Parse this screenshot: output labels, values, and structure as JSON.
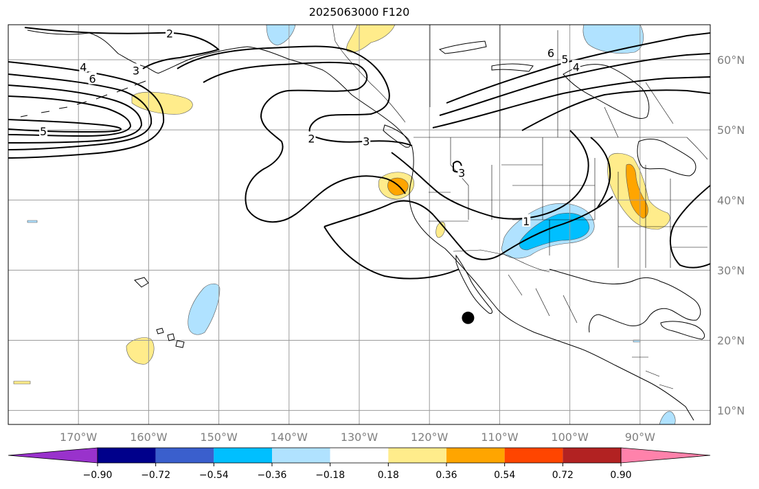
{
  "title": "2025063000 F120",
  "map": {
    "projection": "plate-carree",
    "lon_range": [
      -180,
      -80
    ],
    "lat_range": [
      8,
      65
    ],
    "gridlines": true,
    "lon_ticks": [
      {
        "value": -170,
        "label": "170°W"
      },
      {
        "value": -160,
        "label": "160°W"
      },
      {
        "value": -150,
        "label": "150°W"
      },
      {
        "value": -140,
        "label": "140°W"
      },
      {
        "value": -130,
        "label": "130°W"
      },
      {
        "value": -120,
        "label": "120°W"
      },
      {
        "value": -110,
        "label": "110°W"
      },
      {
        "value": -100,
        "label": "100°W"
      },
      {
        "value": -90,
        "label": "90°W"
      }
    ],
    "lat_ticks": [
      {
        "value": 60,
        "label": "60°N"
      },
      {
        "value": 50,
        "label": "50°N"
      },
      {
        "value": 40,
        "label": "40°N"
      },
      {
        "value": 30,
        "label": "30°N"
      },
      {
        "value": 20,
        "label": "20°N"
      },
      {
        "value": 10,
        "label": "10°N"
      }
    ],
    "marker": {
      "lon": -114.5,
      "lat": 23.2,
      "color": "#000000"
    },
    "contour_labels": [
      {
        "text": "2",
        "lon": -157.0,
        "lat": 63.8
      },
      {
        "text": "4",
        "lon": -169.3,
        "lat": 59.0
      },
      {
        "text": "3",
        "lon": -161.8,
        "lat": 58.5
      },
      {
        "text": "6",
        "lon": -168.0,
        "lat": 57.3
      },
      {
        "text": "5",
        "lon": -175.0,
        "lat": 49.8
      },
      {
        "text": "2",
        "lon": -136.8,
        "lat": 48.8
      },
      {
        "text": "3",
        "lon": -129.0,
        "lat": 48.4
      },
      {
        "text": "3",
        "lon": -115.4,
        "lat": 43.9
      },
      {
        "text": "1",
        "lon": -106.2,
        "lat": 37.0
      },
      {
        "text": "6",
        "lon": -102.7,
        "lat": 61.0
      },
      {
        "text": "5",
        "lon": -100.7,
        "lat": 60.1
      },
      {
        "text": "4",
        "lon": -99.1,
        "lat": 59.0
      }
    ]
  },
  "colorbar": {
    "ticks": [
      "−0.90",
      "−0.72",
      "−0.54",
      "−0.36",
      "−0.18",
      "0.18",
      "0.36",
      "0.54",
      "0.72",
      "0.90"
    ],
    "colors": [
      "#9932cc",
      "#00008b",
      "#3a5fcd",
      "#00bfff",
      "#b0e2ff",
      "#ffffff",
      "#ffec8b",
      "#ffa500",
      "#ff4500",
      "#b22222",
      "#ff82ab"
    ]
  }
}
